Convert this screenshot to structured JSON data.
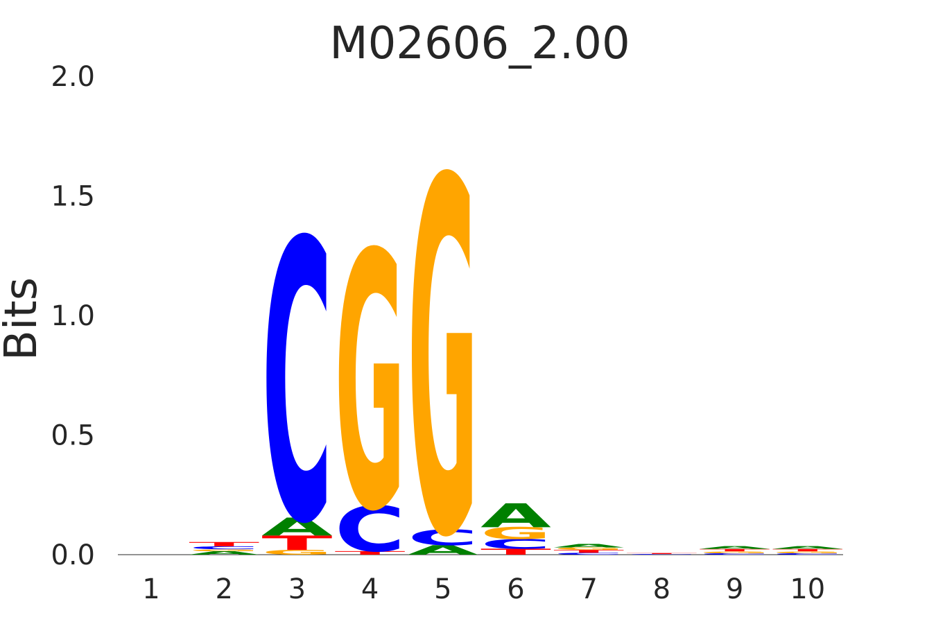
{
  "chart_data": {
    "type": "sequence-logo",
    "title": "M02606_2.00",
    "ylabel": "Bits",
    "xlabel": "",
    "ylim": [
      0,
      2
    ],
    "yticks": [
      "0.0",
      "0.5",
      "1.0",
      "1.5",
      "2.0"
    ],
    "ytick_values": [
      0,
      0.5,
      1.0,
      1.5,
      2.0
    ],
    "positions": [
      "1",
      "2",
      "3",
      "4",
      "5",
      "6",
      "7",
      "8",
      "9",
      "10"
    ],
    "grid": false,
    "colors": {
      "A": "#008000",
      "C": "#0000ff",
      "G": "#ffa500",
      "T": "#ff0000"
    },
    "stacks": [
      [],
      [
        {
          "base": "A",
          "bits": 0.015
        },
        {
          "base": "G",
          "bits": 0.008
        },
        {
          "base": "C",
          "bits": 0.012
        },
        {
          "base": "T",
          "bits": 0.018
        }
      ],
      [
        {
          "base": "G",
          "bits": 0.02
        },
        {
          "base": "T",
          "bits": 0.06
        },
        {
          "base": "A",
          "bits": 0.075
        },
        {
          "base": "C",
          "bits": 1.17
        }
      ],
      [
        {
          "base": "T",
          "bits": 0.015
        },
        {
          "base": "C",
          "bits": 0.19
        },
        {
          "base": "G",
          "bits": 1.07
        }
      ],
      [
        {
          "base": "A",
          "bits": 0.04
        },
        {
          "base": "C",
          "bits": 0.065
        },
        {
          "base": "G",
          "bits": 1.48
        }
      ],
      [
        {
          "base": "T",
          "bits": 0.025
        },
        {
          "base": "C",
          "bits": 0.04
        },
        {
          "base": "G",
          "bits": 0.05
        },
        {
          "base": "A",
          "bits": 0.1
        }
      ],
      [
        {
          "base": "C",
          "bits": 0.008
        },
        {
          "base": "T",
          "bits": 0.012
        },
        {
          "base": "G",
          "bits": 0.01
        },
        {
          "base": "A",
          "bits": 0.015
        }
      ],
      [
        {
          "base": "C",
          "bits": 0.003
        },
        {
          "base": "T",
          "bits": 0.004
        }
      ],
      [
        {
          "base": "C",
          "bits": 0.006
        },
        {
          "base": "G",
          "bits": 0.008
        },
        {
          "base": "T",
          "bits": 0.01
        },
        {
          "base": "A",
          "bits": 0.012
        }
      ],
      [
        {
          "base": "C",
          "bits": 0.006
        },
        {
          "base": "G",
          "bits": 0.008
        },
        {
          "base": "T",
          "bits": 0.01
        },
        {
          "base": "A",
          "bits": 0.012
        }
      ]
    ]
  }
}
